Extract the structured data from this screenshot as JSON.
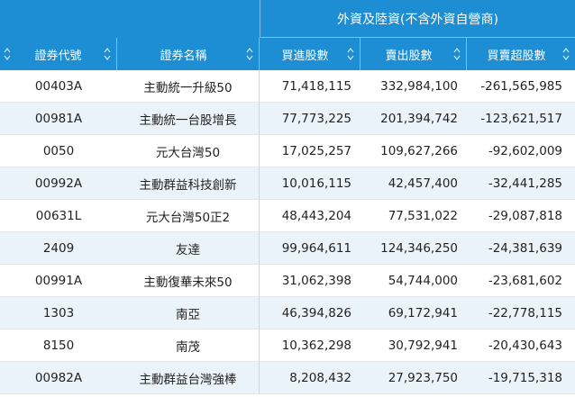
{
  "header": {
    "group_title": "外資及陸資(不含外資自營商)",
    "columns": [
      "證券代號",
      "證券名稱",
      "買進股數",
      "賣出股數",
      "買賣超股數"
    ]
  },
  "rows": [
    {
      "code": "00403A",
      "name": "主動統一升級50",
      "buy": "71,418,115",
      "sell": "332,984,100",
      "net": "-261,565,985"
    },
    {
      "code": "00981A",
      "name": "主動統一台股增長",
      "buy": "77,773,225",
      "sell": "201,394,742",
      "net": "-123,621,517"
    },
    {
      "code": "0050",
      "name": "元大台灣50",
      "buy": "17,025,257",
      "sell": "109,627,266",
      "net": "-92,602,009"
    },
    {
      "code": "00992A",
      "name": "主動群益科技創新",
      "buy": "10,016,115",
      "sell": "42,457,400",
      "net": "-32,441,285"
    },
    {
      "code": "00631L",
      "name": "元大台灣50正2",
      "buy": "48,443,204",
      "sell": "77,531,022",
      "net": "-29,087,818"
    },
    {
      "code": "2409",
      "name": "友達",
      "buy": "99,964,611",
      "sell": "124,346,250",
      "net": "-24,381,639"
    },
    {
      "code": "00991A",
      "name": "主動復華未來50",
      "buy": "31,062,398",
      "sell": "54,744,000",
      "net": "-23,681,602"
    },
    {
      "code": "1303",
      "name": "南亞",
      "buy": "46,394,826",
      "sell": "69,172,941",
      "net": "-22,778,115"
    },
    {
      "code": "8150",
      "name": "南茂",
      "buy": "10,362,298",
      "sell": "30,792,941",
      "net": "-20,430,643"
    },
    {
      "code": "00982A",
      "name": "主動群益台灣強棒",
      "buy": "8,208,432",
      "sell": "27,923,750",
      "net": "-19,715,318"
    }
  ]
}
